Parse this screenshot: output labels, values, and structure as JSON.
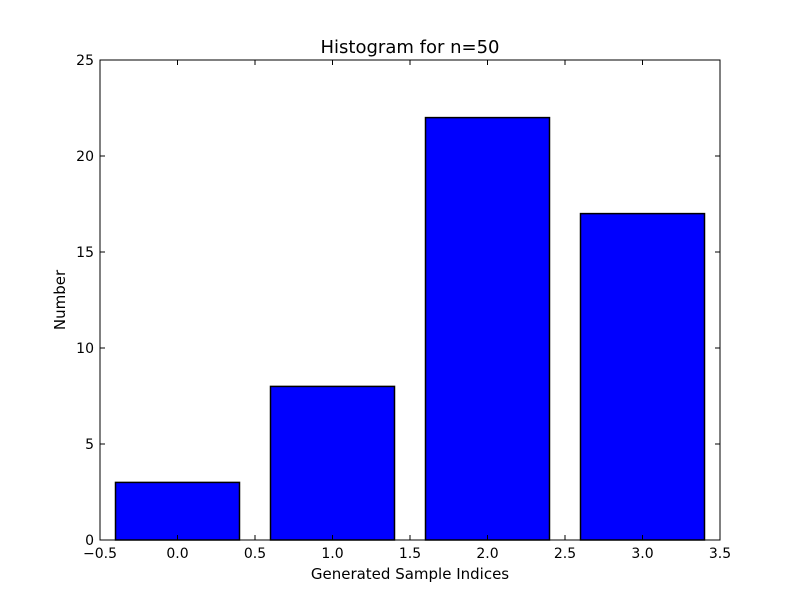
{
  "chart_data": {
    "type": "bar",
    "title": "Histogram for n=50",
    "xlabel": "Generated Sample Indices",
    "ylabel": "Number",
    "x": [
      0,
      1,
      2,
      3
    ],
    "values": [
      3,
      8,
      22,
      17
    ],
    "bar_width": 0.8,
    "xlim": [
      -0.5,
      3.5
    ],
    "ylim": [
      0,
      25
    ],
    "xticks": [
      -0.5,
      0.0,
      0.5,
      1.0,
      1.5,
      2.0,
      2.5,
      3.0,
      3.5
    ],
    "xtick_labels": [
      "−0.5",
      "0.0",
      "0.5",
      "1.0",
      "1.5",
      "2.0",
      "2.5",
      "3.0",
      "3.5"
    ],
    "yticks": [
      0,
      5,
      10,
      15,
      20,
      25
    ],
    "ytick_labels": [
      "0",
      "5",
      "10",
      "15",
      "20",
      "25"
    ],
    "bar_color": "#0000ff",
    "edge_color": "#000000",
    "grid": false,
    "legend": "none"
  }
}
